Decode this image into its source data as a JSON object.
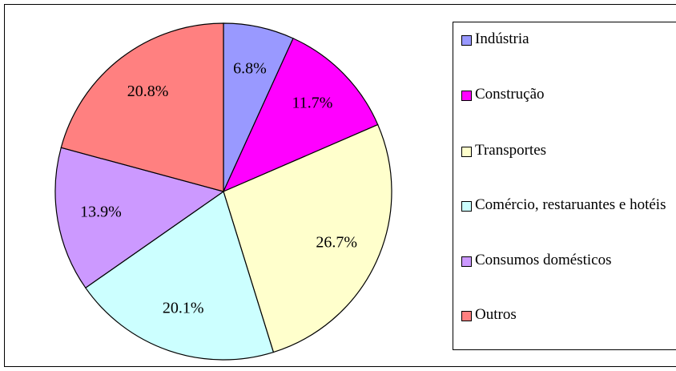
{
  "chart_data": {
    "type": "pie",
    "categories": [
      "Indústria",
      "Construção",
      "Transportes",
      "Comércio, restaruantes e hotéis",
      "Consumos domésticos",
      "Outros"
    ],
    "values": [
      6.8,
      11.7,
      26.7,
      20.1,
      13.9,
      20.8
    ],
    "value_labels": [
      "6.8%",
      "11.7%",
      "26.7%",
      "20.1%",
      "13.9%",
      "20.8%"
    ],
    "colors": [
      "#9999ff",
      "#ff00ff",
      "#ffffcc",
      "#ccffff",
      "#cc99ff",
      "#ff8080"
    ],
    "legend": "right"
  }
}
